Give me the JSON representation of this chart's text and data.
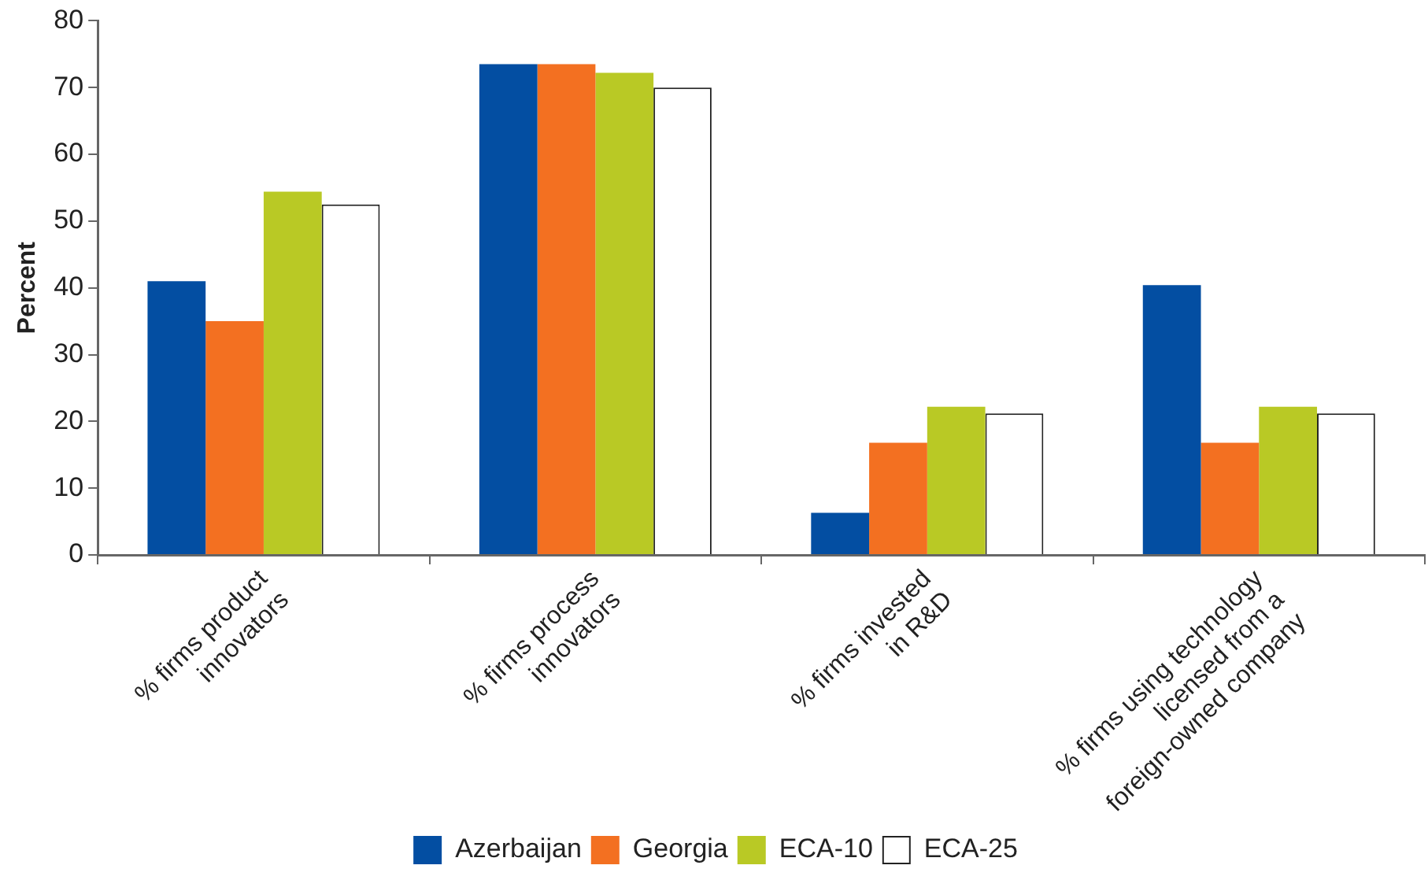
{
  "chart_data": {
    "type": "bar",
    "ylabel": "Percent",
    "categories": [
      "% firms product\ninnovators",
      "% firms process\ninnovators",
      "% firms invested\nin R&D",
      "% firms using technology\nlicensed from a\nforeign-owned company"
    ],
    "series": [
      {
        "name": "Azerbaijan",
        "color": "#034ea2",
        "values": [
          41.0,
          73.5,
          6.3,
          40.4
        ]
      },
      {
        "name": "Georgia",
        "color": "#f37021",
        "values": [
          35.0,
          73.5,
          16.8,
          16.8
        ]
      },
      {
        "name": "ECA-10",
        "color": "#b9c925",
        "values": [
          54.4,
          72.2,
          22.2,
          22.2
        ]
      },
      {
        "name": "ECA-25",
        "color": "#ffffff",
        "values": [
          52.5,
          70.0,
          21.2,
          21.2
        ]
      }
    ],
    "ylim": [
      0,
      80
    ],
    "yticks": [
      0,
      10,
      20,
      30,
      40,
      50,
      60,
      70,
      80
    ],
    "grid": false,
    "legend": "bottom"
  }
}
